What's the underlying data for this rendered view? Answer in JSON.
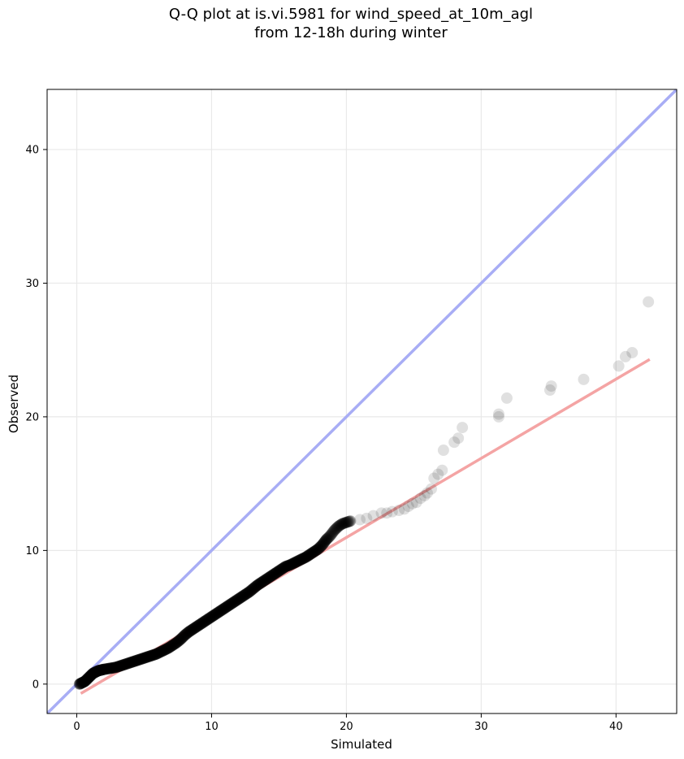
{
  "chart_data": {
    "type": "scatter",
    "title_line1": "Q-Q plot at is.vi.5981 for wind_speed_at_10m_agl",
    "title_line2": "from 12-18h during winter",
    "xlabel": "Simulated",
    "ylabel": "Observed",
    "xlim": [
      -2.2,
      44.5
    ],
    "ylim": [
      -2.2,
      44.5
    ],
    "xticks": [
      0,
      10,
      20,
      30,
      40
    ],
    "yticks": [
      0,
      10,
      20,
      30,
      40
    ],
    "grid": true,
    "identity_line": {
      "color": "#a8adf5",
      "from": -2.2,
      "to": 44.5
    },
    "fit_line": {
      "color": "#f4a4a4",
      "x": [
        0.3,
        42.5
      ],
      "y": [
        -0.7,
        24.3
      ]
    },
    "point_color": "#000000",
    "points": [
      [
        0.2,
        0.0
      ],
      [
        0.4,
        0.1
      ],
      [
        0.6,
        0.2
      ],
      [
        0.8,
        0.4
      ],
      [
        1.0,
        0.6
      ],
      [
        1.2,
        0.8
      ],
      [
        1.4,
        0.9
      ],
      [
        1.6,
        1.0
      ],
      [
        1.8,
        1.05
      ],
      [
        2.0,
        1.1
      ],
      [
        2.3,
        1.15
      ],
      [
        2.6,
        1.2
      ],
      [
        2.9,
        1.25
      ],
      [
        3.2,
        1.35
      ],
      [
        3.5,
        1.45
      ],
      [
        3.8,
        1.55
      ],
      [
        4.1,
        1.65
      ],
      [
        4.4,
        1.75
      ],
      [
        4.7,
        1.85
      ],
      [
        5.0,
        1.95
      ],
      [
        5.3,
        2.05
      ],
      [
        5.6,
        2.15
      ],
      [
        5.9,
        2.25
      ],
      [
        6.2,
        2.4
      ],
      [
        6.5,
        2.55
      ],
      [
        6.8,
        2.7
      ],
      [
        7.1,
        2.9
      ],
      [
        7.4,
        3.1
      ],
      [
        7.7,
        3.35
      ],
      [
        8.0,
        3.65
      ],
      [
        8.3,
        3.9
      ],
      [
        8.6,
        4.1
      ],
      [
        8.9,
        4.3
      ],
      [
        9.2,
        4.5
      ],
      [
        9.5,
        4.7
      ],
      [
        9.8,
        4.9
      ],
      [
        10.1,
        5.1
      ],
      [
        10.4,
        5.3
      ],
      [
        10.7,
        5.5
      ],
      [
        11.0,
        5.7
      ],
      [
        11.3,
        5.9
      ],
      [
        11.6,
        6.1
      ],
      [
        11.9,
        6.3
      ],
      [
        12.2,
        6.5
      ],
      [
        12.5,
        6.7
      ],
      [
        12.8,
        6.9
      ],
      [
        13.1,
        7.15
      ],
      [
        13.4,
        7.4
      ],
      [
        13.7,
        7.6
      ],
      [
        14.0,
        7.8
      ],
      [
        14.3,
        8.0
      ],
      [
        14.6,
        8.2
      ],
      [
        14.9,
        8.4
      ],
      [
        15.2,
        8.6
      ],
      [
        15.5,
        8.8
      ],
      [
        15.8,
        8.9
      ],
      [
        16.1,
        9.05
      ],
      [
        16.4,
        9.2
      ],
      [
        16.7,
        9.35
      ],
      [
        17.0,
        9.5
      ],
      [
        17.3,
        9.7
      ],
      [
        17.6,
        9.9
      ],
      [
        17.9,
        10.1
      ],
      [
        18.2,
        10.4
      ],
      [
        18.5,
        10.8
      ],
      [
        18.8,
        11.1
      ],
      [
        19.1,
        11.5
      ],
      [
        19.4,
        11.8
      ],
      [
        19.7,
        12.0
      ],
      [
        20.0,
        12.1
      ],
      [
        20.3,
        12.2
      ],
      [
        21.0,
        12.3
      ],
      [
        21.5,
        12.4
      ],
      [
        22.0,
        12.6
      ],
      [
        22.6,
        12.8
      ],
      [
        23.0,
        12.8
      ],
      [
        23.4,
        12.9
      ],
      [
        23.9,
        13.0
      ],
      [
        24.3,
        13.1
      ],
      [
        24.6,
        13.3
      ],
      [
        24.9,
        13.5
      ],
      [
        25.2,
        13.6
      ],
      [
        25.5,
        13.9
      ],
      [
        25.8,
        14.1
      ],
      [
        26.0,
        14.3
      ],
      [
        26.3,
        14.6
      ],
      [
        26.5,
        15.4
      ],
      [
        26.8,
        15.7
      ],
      [
        27.1,
        16.0
      ],
      [
        27.2,
        17.5
      ],
      [
        28.0,
        18.1
      ],
      [
        28.3,
        18.4
      ],
      [
        28.6,
        19.2
      ],
      [
        31.3,
        20.0
      ],
      [
        31.3,
        20.2
      ],
      [
        31.9,
        21.4
      ],
      [
        35.1,
        22.0
      ],
      [
        35.2,
        22.3
      ],
      [
        37.6,
        22.8
      ],
      [
        40.2,
        23.8
      ],
      [
        40.7,
        24.5
      ],
      [
        41.2,
        24.8
      ],
      [
        42.4,
        28.6
      ]
    ]
  }
}
